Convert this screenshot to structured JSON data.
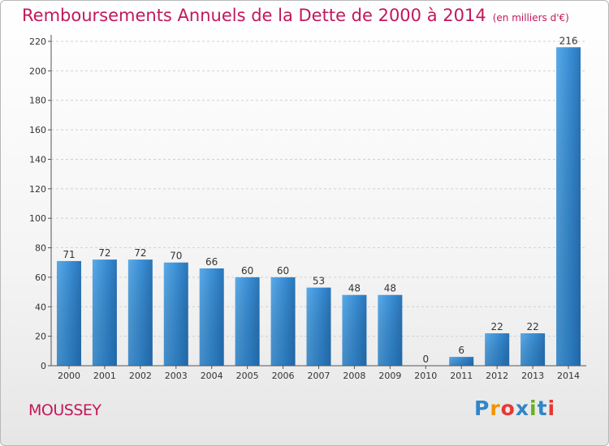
{
  "chart_data": {
    "type": "bar",
    "title": "Remboursements Annuels de la Dette de 2000 à 2014",
    "subtitle": "(en milliers d'€)",
    "categories": [
      "2000",
      "2001",
      "2002",
      "2003",
      "2004",
      "2005",
      "2006",
      "2007",
      "2008",
      "2009",
      "2010",
      "2011",
      "2012",
      "2013",
      "2014"
    ],
    "values": [
      71,
      72,
      72,
      70,
      66,
      60,
      60,
      53,
      48,
      48,
      0,
      6,
      22,
      22,
      216
    ],
    "yticks": [
      0,
      20,
      40,
      60,
      80,
      100,
      120,
      140,
      160,
      180,
      200,
      220
    ],
    "ylim": [
      0,
      220
    ],
    "xlabel": "",
    "ylabel": "",
    "bar_color": "#3a8fd6"
  },
  "footer": {
    "commune": "MOUSSEY",
    "logo_letters": [
      "P",
      "r",
      "o",
      "x",
      "i",
      "t",
      "i"
    ]
  }
}
